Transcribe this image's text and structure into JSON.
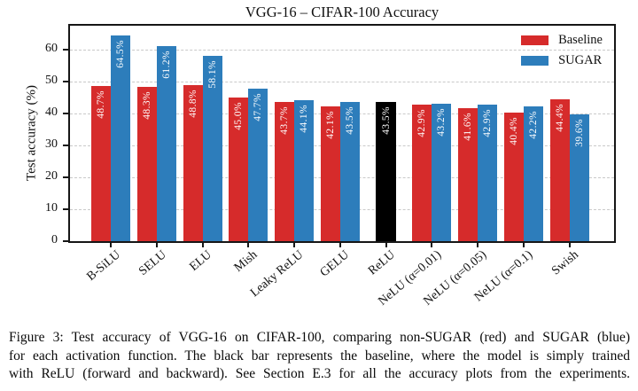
{
  "figure": {
    "caption_lines": [
      "Figure 3: Test accuracy of VGG-16 on CIFAR-100, comparing non-SUGAR (red) and SUGAR (blue)",
      "for each activation function. The black bar represents the baseline, where the model is simply trained",
      "with ReLU (forward and backward). See Section E.3 for all the accuracy plots from the experiments."
    ]
  },
  "chart_data": {
    "type": "bar",
    "title": "VGG-16 – CIFAR-100 Accuracy",
    "ylabel": "Test accuracy (%)",
    "ylim": [
      0,
      67.5
    ],
    "yticks": [
      0,
      10,
      20,
      30,
      40,
      50,
      60
    ],
    "grid": "horizontal-dashed",
    "legend_position": "upper-right",
    "value_label_format": "one-decimal-percent",
    "categories": [
      "B-SiLU",
      "SELU",
      "ELU",
      "Mish",
      "Leaky ReLU",
      "GELU",
      "ReLU",
      "NeLU (α=0.01)",
      "NeLU (α=0.05)",
      "NeLU (α=0.1)",
      "Swish"
    ],
    "series": [
      {
        "name": "Baseline",
        "color": "#d62b2b",
        "values": [
          48.7,
          48.3,
          48.8,
          45.0,
          43.7,
          42.1,
          null,
          42.9,
          41.6,
          40.4,
          44.4
        ]
      },
      {
        "name": "SUGAR",
        "color": "#2d7dbb",
        "values": [
          64.5,
          61.2,
          58.1,
          47.7,
          44.1,
          43.5,
          null,
          43.2,
          42.9,
          42.2,
          39.6
        ]
      }
    ],
    "baseline_bar": {
      "category": "ReLU",
      "value": 43.5,
      "color": "#000000",
      "label": "43.5%"
    }
  }
}
